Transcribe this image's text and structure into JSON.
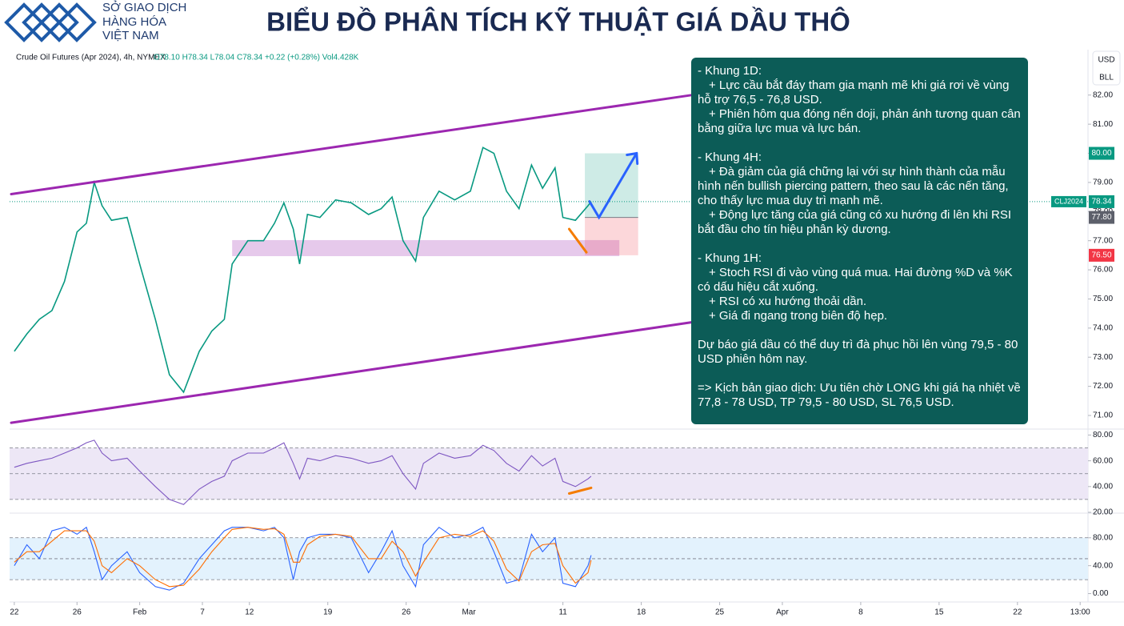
{
  "header": {
    "title": "BIỂU ĐỒ PHÂN TÍCH KỸ THUẬT GIÁ DẦU THÔ",
    "logo": [
      "SỞ GIAO DỊCH",
      "HÀNG HÓA",
      "VIỆT NAM"
    ]
  },
  "note": {
    "sections": [
      [
        "- Khung 1D:",
        "+ Lực cầu bắt đáy tham gia mạnh mẽ khi giá rơi về vùng hỗ trợ 76,5 - 76,8 USD.",
        "+ Phiên hôm qua đóng nến doji, phản ánh tương quan cân bằng giữa lực mua và lực bán."
      ],
      [
        "- Khung 4H:",
        "+ Đà giảm của giá chững lại với sự hình thành của mẫu hình nến bullish piercing pattern, theo sau là các nến tăng, cho thấy lực mua duy trì mạnh mẽ.",
        "+ Động lực tăng của giá cũng có xu hướng đi lên khi RSI bắt đầu cho tín hiệu phân kỳ dương."
      ],
      [
        "- Khung 1H:",
        "+ Stoch RSI đi vào vùng quá mua. Hai đường %D và %K có dấu hiệu cắt xuống.",
        "+ RSI có xu hướng thoải dần.",
        "+ Giá đi ngang trong biên độ hẹp."
      ],
      [
        "Dự báo giá dầu có thể duy trì đà phục hồi lên vùng 79,5 - 80 USD phiên hôm nay."
      ],
      [
        "=> Kịch bản giao dịch: Ưu tiên chờ LONG khi giá hạ nhiệt về 77,8 - 78 USD, TP 79,5 - 80 USD, SL 76,5 USD."
      ]
    ]
  },
  "chart_data": [
    {
      "type": "line",
      "title": "Crude Oil Futures (Apr 2024), 4h, NYMEX",
      "ohlc_text": "O78.10 H78.34 L78.04 C78.34 +0.22 (+0.28%) Vol4.428K",
      "axis_buttons": [
        "USD",
        "BLL"
      ],
      "xlim": [
        -0.3,
        68.5
      ],
      "ylim": [
        70.56,
        83.56
      ],
      "yticks": [
        {
          "value": 71,
          "label": "71.00"
        },
        {
          "value": 72,
          "label": "72.00"
        },
        {
          "value": 73,
          "label": "73.00"
        },
        {
          "value": 74,
          "label": "74.00"
        },
        {
          "value": 75,
          "label": "75.00"
        },
        {
          "value": 76,
          "label": "76.00"
        },
        {
          "value": 77,
          "label": "77.00"
        },
        {
          "value": 78,
          "label": "78.00"
        },
        {
          "value": 79,
          "label": "79.00"
        },
        {
          "value": 80,
          "label": "80.00"
        },
        {
          "value": 81,
          "label": "81.00"
        },
        {
          "value": 82,
          "label": "82.00"
        }
      ],
      "x": [
        0,
        0.8,
        1.6,
        2.4,
        3.2,
        4,
        4.6,
        5.1,
        5.6,
        6.2,
        7.2,
        8,
        9,
        9.9,
        10.8,
        11.8,
        12.6,
        13.4,
        13.9,
        14.9,
        15.9,
        16.6,
        17.2,
        17.8,
        18.2,
        18.7,
        19.5,
        20.5,
        21.5,
        22.6,
        23.4,
        24.1,
        24.8,
        25.6,
        26.1,
        27.1,
        28.1,
        29.1,
        29.9,
        30.6,
        31.4,
        32.2,
        33,
        33.7,
        34.5,
        35,
        35.8,
        36.6,
        36.8
      ],
      "series": [
        {
          "color": "#089981",
          "values": [
            73.2,
            73.8,
            74.3,
            74.6,
            75.6,
            77.3,
            77.6,
            79.0,
            78.2,
            77.7,
            77.8,
            76.2,
            74.3,
            72.4,
            71.8,
            73.2,
            73.9,
            74.3,
            76.2,
            77.0,
            77.0,
            77.6,
            78.3,
            77.4,
            76.2,
            77.9,
            77.8,
            78.4,
            78.3,
            77.9,
            78.1,
            78.5,
            77.0,
            76.3,
            77.8,
            78.7,
            78.4,
            78.7,
            80.2,
            80.0,
            78.7,
            78.1,
            79.6,
            78.8,
            79.5,
            77.8,
            77.7,
            78.2,
            78.34
          ]
        }
      ],
      "trendlines": [
        {
          "color": "#9c27b0",
          "x": [
            -0.2,
            43.2
          ],
          "y": [
            78.6,
            82.0
          ]
        },
        {
          "color": "#9c27b0",
          "x": [
            -0.2,
            43.2
          ],
          "y": [
            70.75,
            74.2
          ]
        },
        {
          "color": "#f57c00",
          "x": [
            35.4,
            36.5
          ],
          "y": [
            77.4,
            76.6
          ]
        },
        {
          "color": "#2962ff",
          "x": [
            36.7,
            37.3,
            39.7
          ],
          "y": [
            78.35,
            77.8,
            80.0
          ]
        }
      ],
      "zone": {
        "color": "#ce93d8",
        "x": [
          13.9,
          38.6
        ],
        "y": [
          76.47,
          77.02
        ]
      },
      "position": {
        "x": [
          36.4,
          39.8
        ],
        "entry": 77.8,
        "target": 80.0,
        "stop": 76.5
      },
      "price_labels": [
        {
          "value": 80,
          "label": "80.00",
          "color": "#089981"
        },
        {
          "name": "CLJ2024",
          "value": 78.34,
          "label": "78.34",
          "color": "#089981"
        },
        {
          "value": 77.8,
          "label": "77.80",
          "color": "#5d606b"
        },
        {
          "value": 76.5,
          "label": "76.50",
          "color": "#f23645"
        }
      ]
    },
    {
      "type": "line",
      "xlim": [
        -0.3,
        68.5
      ],
      "ylim": [
        20,
        84
      ],
      "yticks": [
        {
          "value": 20,
          "label": "20.00"
        },
        {
          "value": 40,
          "label": "40.00"
        },
        {
          "value": 60,
          "label": "60.00"
        },
        {
          "value": 80,
          "label": "80.00"
        }
      ],
      "band": [
        30,
        70
      ],
      "levels": [
        30,
        50,
        70
      ],
      "band_color": "#ede7f6",
      "x": [
        0,
        0.8,
        1.6,
        2.4,
        3.2,
        4,
        4.6,
        5.1,
        5.6,
        6.2,
        7.2,
        8,
        9,
        9.9,
        10.8,
        11.8,
        12.6,
        13.4,
        13.9,
        14.9,
        15.9,
        16.6,
        17.2,
        17.8,
        18.2,
        18.7,
        19.5,
        20.5,
        21.5,
        22.6,
        23.4,
        24.1,
        24.8,
        25.6,
        26.1,
        27.1,
        28.1,
        29.1,
        29.9,
        30.6,
        31.4,
        32.2,
        33,
        33.7,
        34.5,
        35,
        35.8,
        36.6,
        36.8
      ],
      "series": [
        {
          "color": "#7e57c2",
          "values": [
            55,
            58,
            60,
            62,
            66,
            70,
            74,
            76,
            66,
            60,
            62,
            52,
            40,
            30,
            26,
            38,
            44,
            48,
            60,
            66,
            66,
            70,
            74,
            58,
            46,
            62,
            60,
            64,
            62,
            58,
            60,
            64,
            50,
            38,
            58,
            66,
            62,
            64,
            72,
            68,
            58,
            52,
            64,
            56,
            62,
            44,
            40,
            46,
            48
          ]
        }
      ],
      "trendlines": [
        {
          "color": "#f57c00",
          "x": [
            35.4,
            36.8
          ],
          "y": [
            34.6,
            39
          ]
        }
      ]
    },
    {
      "type": "line",
      "xlim": [
        -0.3,
        68.5
      ],
      "ylim": [
        -12,
        113
      ],
      "yticks": [
        {
          "value": 0,
          "label": "0.00"
        },
        {
          "value": 40,
          "label": "40.00"
        },
        {
          "value": 80,
          "label": "80.00"
        }
      ],
      "band": [
        20,
        80
      ],
      "levels": [
        20,
        50,
        80
      ],
      "band_color": "#e3f2fd",
      "x": [
        0,
        0.8,
        1.6,
        2.4,
        3.2,
        4,
        4.6,
        5.1,
        5.6,
        6.2,
        7.2,
        8,
        9,
        9.9,
        10.8,
        11.8,
        12.6,
        13.4,
        13.9,
        14.9,
        15.9,
        16.6,
        17.2,
        17.8,
        18.2,
        18.7,
        19.5,
        20.5,
        21.5,
        22.6,
        23.4,
        24.1,
        24.8,
        25.6,
        26.1,
        27.1,
        28.1,
        29.1,
        29.9,
        30.6,
        31.4,
        32.2,
        33,
        33.7,
        34.5,
        35,
        35.8,
        36.6,
        36.8
      ],
      "series": [
        {
          "color": "#2962ff",
          "values": [
            40,
            70,
            50,
            90,
            95,
            85,
            95,
            60,
            20,
            40,
            60,
            30,
            10,
            5,
            15,
            50,
            70,
            90,
            95,
            95,
            90,
            95,
            80,
            20,
            60,
            80,
            85,
            85,
            80,
            30,
            60,
            90,
            40,
            10,
            70,
            95,
            80,
            85,
            95,
            60,
            15,
            20,
            85,
            60,
            80,
            15,
            10,
            40,
            55
          ]
        },
        {
          "color": "#ff6d00",
          "values": [
            45,
            60,
            60,
            75,
            90,
            90,
            90,
            75,
            40,
            30,
            50,
            40,
            20,
            10,
            12,
            35,
            60,
            80,
            92,
            95,
            92,
            93,
            85,
            45,
            45,
            70,
            82,
            85,
            82,
            50,
            50,
            75,
            60,
            25,
            45,
            80,
            85,
            82,
            90,
            75,
            35,
            18,
            60,
            70,
            72,
            40,
            15,
            30,
            48
          ]
        }
      ],
      "xticks": [
        {
          "value": 0,
          "label": "22"
        },
        {
          "value": 4,
          "label": "26"
        },
        {
          "value": 8,
          "label": "Feb"
        },
        {
          "value": 12,
          "label": "7"
        },
        {
          "value": 15,
          "label": "12"
        },
        {
          "value": 20,
          "label": "19"
        },
        {
          "value": 25,
          "label": "26"
        },
        {
          "value": 29,
          "label": "Mar"
        },
        {
          "value": 35,
          "label": "11"
        },
        {
          "value": 40,
          "label": "18"
        },
        {
          "value": 45,
          "label": "25"
        },
        {
          "value": 49,
          "label": "Apr"
        },
        {
          "value": 54,
          "label": "8"
        },
        {
          "value": 59,
          "label": "15"
        },
        {
          "value": 64,
          "label": "22"
        },
        {
          "value": 68,
          "label": "13:00"
        }
      ]
    }
  ]
}
